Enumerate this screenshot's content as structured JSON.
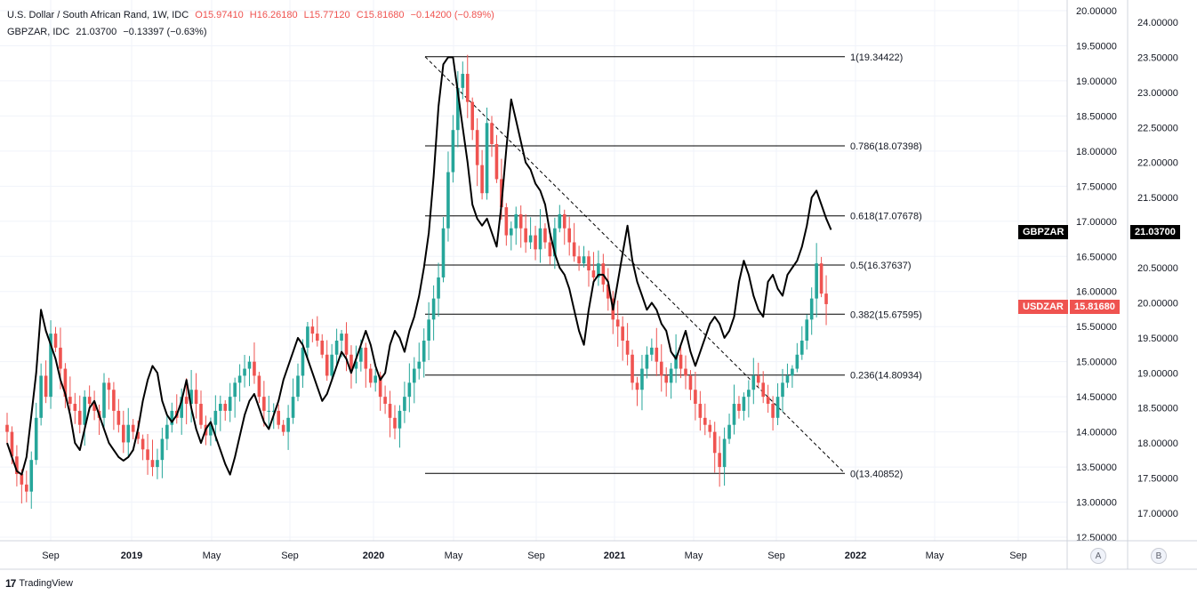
{
  "legend": {
    "main": {
      "title": "U.S. Dollar / South African Rand, 1W, IDC",
      "open": "O15.97410",
      "high": "H16.26180",
      "low": "L15.77120",
      "close": "C15.81680",
      "change": "−0.14200 (−0.89%)"
    },
    "compare": {
      "title": "GBPZAR, IDC",
      "value": "21.03700",
      "change": "−0.13397 (−0.63%)"
    }
  },
  "tags": {
    "gbpzar_label": "GBPZAR",
    "gbpzar_value": "21.03700",
    "usdzar_label": "USDZAR",
    "usdzar_value": "15.81680"
  },
  "colors": {
    "up": "#26a69a",
    "down": "#ef5350",
    "compare_line": "#000000",
    "grid": "#f0f3fa"
  },
  "axis_buttons": {
    "a": "A",
    "b": "B"
  },
  "footer": {
    "logo": "17",
    "brand": "TradingView"
  },
  "chart_data": {
    "type": "candlestick",
    "x_ticks": [
      "Sep",
      "2019",
      "May",
      "Sep",
      "2020",
      "May",
      "Sep",
      "2021",
      "May",
      "Sep",
      "2022",
      "May",
      "Sep"
    ],
    "x_tick_year": [
      false,
      true,
      false,
      false,
      true,
      false,
      false,
      true,
      false,
      false,
      true,
      false,
      false
    ],
    "left_axis": {
      "range": [
        12.5,
        20.0
      ],
      "ticks": [
        "12.50000",
        "13.00000",
        "13.50000",
        "14.00000",
        "14.50000",
        "15.00000",
        "15.50000",
        "16.00000",
        "16.50000",
        "17.00000",
        "17.50000",
        "18.00000",
        "18.50000",
        "19.00000",
        "19.50000",
        "20.00000"
      ]
    },
    "right_axis": {
      "range": [
        17.0,
        24.0
      ],
      "ticks": [
        "17.00000",
        "17.50000",
        "18.00000",
        "18.50000",
        "19.00000",
        "19.50000",
        "20.00000",
        "20.50000",
        "21.00000",
        "21.50000",
        "22.00000",
        "22.50000",
        "23.00000",
        "23.50000",
        "24.00000"
      ]
    },
    "series": [
      {
        "name": "USDZAR",
        "style": "candles",
        "axis": "left",
        "closes": [
          14.0,
          13.65,
          13.4,
          13.25,
          13.15,
          13.6,
          14.2,
          14.8,
          14.5,
          15.4,
          15.2,
          14.9,
          14.5,
          14.4,
          14.3,
          14.1,
          14.5,
          14.4,
          14.3,
          14.2,
          14.7,
          14.6,
          14.3,
          14.1,
          13.85,
          14.1,
          14.0,
          13.9,
          13.75,
          13.6,
          13.5,
          13.6,
          13.9,
          14.1,
          14.3,
          14.2,
          14.5,
          14.4,
          14.6,
          14.4,
          14.1,
          13.95,
          14.1,
          14.3,
          14.4,
          14.3,
          14.5,
          14.7,
          14.8,
          14.9,
          15.0,
          14.8,
          14.5,
          14.3,
          14.3,
          14.3,
          14.1,
          14.0,
          14.2,
          14.5,
          14.8,
          15.2,
          15.5,
          15.4,
          15.3,
          15.1,
          14.8,
          15.1,
          15.3,
          15.4,
          15.1,
          14.9,
          15.0,
          15.2,
          14.9,
          14.7,
          14.8,
          14.5,
          14.4,
          14.2,
          14.05,
          14.3,
          14.5,
          14.7,
          14.9,
          15.0,
          15.3,
          15.6,
          15.9,
          16.2,
          16.9,
          17.7,
          18.3,
          18.9,
          19.1,
          18.7,
          18.3,
          17.8,
          17.4,
          18.4,
          18.1,
          17.6,
          17.2,
          16.8,
          16.9,
          17.1,
          16.9,
          16.7,
          16.8,
          16.6,
          16.9,
          16.7,
          16.5,
          16.9,
          17.1,
          16.9,
          16.7,
          16.5,
          16.4,
          16.5,
          16.3,
          16.2,
          16.4,
          16.1,
          15.9,
          15.6,
          15.5,
          15.3,
          15.1,
          14.7,
          14.6,
          14.9,
          15.1,
          15.2,
          15.0,
          14.8,
          14.7,
          14.9,
          15.1,
          14.9,
          14.8,
          14.6,
          14.4,
          14.2,
          14.1,
          14.0,
          13.7,
          13.5,
          13.9,
          14.1,
          14.4,
          14.3,
          14.5,
          14.6,
          14.8,
          14.7,
          14.5,
          14.4,
          14.2,
          14.5,
          14.7,
          14.8,
          14.9,
          15.1,
          15.3,
          15.6,
          15.9,
          16.4,
          15.97,
          15.82
        ]
      },
      {
        "name": "GBPZAR",
        "style": "line",
        "axis": "right",
        "values": [
          18.0,
          17.8,
          17.6,
          17.55,
          17.8,
          18.4,
          19.0,
          19.9,
          19.6,
          19.4,
          19.2,
          18.9,
          18.7,
          18.4,
          18.0,
          17.9,
          18.2,
          18.5,
          18.6,
          18.4,
          18.2,
          18.0,
          17.9,
          17.8,
          17.75,
          17.8,
          17.9,
          18.2,
          18.6,
          18.9,
          19.1,
          19.0,
          18.6,
          18.4,
          18.3,
          18.4,
          18.6,
          18.9,
          18.5,
          18.2,
          18.0,
          18.2,
          18.3,
          18.1,
          17.9,
          17.7,
          17.55,
          17.8,
          18.1,
          18.4,
          18.6,
          18.7,
          18.5,
          18.3,
          18.2,
          18.4,
          18.6,
          18.9,
          19.1,
          19.3,
          19.5,
          19.4,
          19.2,
          19.0,
          18.8,
          18.6,
          18.7,
          18.9,
          19.1,
          19.3,
          19.2,
          19.0,
          19.2,
          19.4,
          19.6,
          19.4,
          19.1,
          18.9,
          19.0,
          19.4,
          19.6,
          19.5,
          19.3,
          19.6,
          19.8,
          20.1,
          20.5,
          21.0,
          21.8,
          22.8,
          23.4,
          23.5,
          23.5,
          23.0,
          22.5,
          22.0,
          21.4,
          21.2,
          21.1,
          21.2,
          21.0,
          20.8,
          21.4,
          22.2,
          22.9,
          22.6,
          22.3,
          22.0,
          21.9,
          21.7,
          21.6,
          21.4,
          21.0,
          20.7,
          20.5,
          20.4,
          20.2,
          19.9,
          19.6,
          19.4,
          19.9,
          20.3,
          20.4,
          20.4,
          20.3,
          19.9,
          20.3,
          20.7,
          21.1,
          20.6,
          20.3,
          20.1,
          19.9,
          20.0,
          19.9,
          19.7,
          19.6,
          19.3,
          19.2,
          19.4,
          19.6,
          19.3,
          19.1,
          19.3,
          19.5,
          19.7,
          19.8,
          19.7,
          19.5,
          19.6,
          19.8,
          20.3,
          20.6,
          20.4,
          20.1,
          19.9,
          19.8,
          20.3,
          20.4,
          20.2,
          20.1,
          20.4,
          20.5,
          20.6,
          20.8,
          21.1,
          21.5,
          21.6,
          21.4,
          21.2,
          21.04
        ]
      }
    ],
    "fibonacci": {
      "levels": [
        {
          "ratio": "1",
          "value": "19.34422"
        },
        {
          "ratio": "0.786",
          "value": "18.07398"
        },
        {
          "ratio": "0.618",
          "value": "17.07678"
        },
        {
          "ratio": "0.5",
          "value": "16.37637"
        },
        {
          "ratio": "0.382",
          "value": "15.67595"
        },
        {
          "ratio": "0.236",
          "value": "14.80934"
        },
        {
          "ratio": "0",
          "value": "13.40852"
        }
      ],
      "start_index": 92,
      "end_index": 179
    }
  }
}
